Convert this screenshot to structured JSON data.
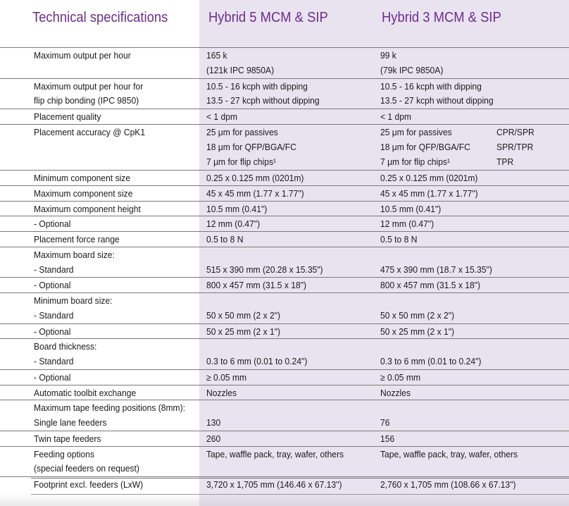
{
  "header": {
    "title": "Technical specifications",
    "col1": "Hybrid 5 MCM & SIP",
    "col2": "Hybrid 3 MCM & SIP"
  },
  "rows": [
    {
      "sep": true,
      "label": "Maximum output per hour",
      "v1": "165 k",
      "v2": "99 k",
      "extra": ""
    },
    {
      "sep": false,
      "label": "",
      "v1": "(121k IPC 9850A)",
      "v2": "(79k IPC 9850A)",
      "extra": ""
    },
    {
      "sep": true,
      "label": "Maximum output per hour for",
      "v1": "10.5 - 16 kcph with dipping",
      "v2": "10.5 - 16 kcph with dipping",
      "extra": ""
    },
    {
      "sep": false,
      "label": "flip chip bonding (IPC 9850)",
      "v1": "13.5 - 27 kcph without dipping",
      "v2": "13.5 - 27 kcph without dipping",
      "extra": ""
    },
    {
      "sep": true,
      "label": "Placement quality",
      "v1": "< 1 dpm",
      "v2": "< 1 dpm",
      "extra": ""
    },
    {
      "sep": true,
      "label": "Placement accuracy @ CpK1",
      "v1": "25 μm for passives",
      "v2": "25 μm for passives",
      "extra": "CPR/SPR"
    },
    {
      "sep": false,
      "label": "",
      "v1": "18 μm for QFP/BGA/FC",
      "v2": "18 μm for QFP/BGA/FC",
      "extra": "SPR/TPR"
    },
    {
      "sep": false,
      "label": "",
      "v1": "7 μm for flip chips¹",
      "v2": "7 μm for flip chips¹",
      "extra": "TPR"
    },
    {
      "sep": true,
      "label": "Minimum component size",
      "v1": "0.25 x 0.125 mm (0201m)",
      "v2": "0.25 x 0.125 mm (0201m)",
      "extra": ""
    },
    {
      "sep": true,
      "label": "Maximum component size",
      "v1": "45 x 45 mm (1.77 x 1.77\")",
      "v2": "45 x 45 mm (1.77 x 1.77\")",
      "extra": ""
    },
    {
      "sep": true,
      "label": "Maximum component height",
      "v1": "10.5 mm (0.41\")",
      "v2": "10.5 mm (0.41\")",
      "extra": ""
    },
    {
      "sep": true,
      "label": "- Optional",
      "v1": "12 mm (0.47\")",
      "v2": "12 mm (0.47\")",
      "extra": ""
    },
    {
      "sep": true,
      "label": "Placement force range",
      "v1": "0.5 to 8 N",
      "v2": "0.5 to 8 N",
      "extra": ""
    },
    {
      "sep": true,
      "label": "Maximum board size:",
      "v1": "",
      "v2": "",
      "extra": ""
    },
    {
      "sep": false,
      "label": "- Standard",
      "v1": "515 x 390 mm (20.28 x 15.35\")",
      "v2": "475 x 390 mm (18.7 x 15.35\")",
      "extra": ""
    },
    {
      "sep": true,
      "label": "- Optional",
      "v1": "800 x 457 mm (31.5 x 18\")",
      "v2": "800 x 457 mm (31.5 x 18\")",
      "extra": ""
    },
    {
      "sep": true,
      "label": "Minimum board size:",
      "v1": "",
      "v2": "",
      "extra": ""
    },
    {
      "sep": false,
      "label": "- Standard",
      "v1": "50 x 50 mm (2 x 2\")",
      "v2": "50 x 50 mm (2 x 2\")",
      "extra": ""
    },
    {
      "sep": true,
      "label": "- Optional",
      "v1": "50 x 25 mm (2 x 1\")",
      "v2": "50 x 25 mm (2 x 1\")",
      "extra": ""
    },
    {
      "sep": true,
      "label": "Board thickness:",
      "v1": "",
      "v2": "",
      "extra": ""
    },
    {
      "sep": false,
      "label": "- Standard",
      "v1": "0.3 to 6 mm (0.01 to 0.24\")",
      "v2": "0.3 to 6 mm (0.01 to 0.24\")",
      "extra": ""
    },
    {
      "sep": true,
      "label": "- Optional",
      "v1": "≥ 0.05 mm",
      "v2": "≥ 0.05 mm",
      "extra": ""
    },
    {
      "sep": true,
      "label": "Automatic toolbit exchange",
      "v1": "Nozzles",
      "v2": "Nozzles",
      "extra": ""
    },
    {
      "sep": true,
      "label": "Maximum tape feeding positions (8mm):",
      "v1": "",
      "v2": "",
      "extra": ""
    },
    {
      "sep": false,
      "label": "Single lane feeders",
      "v1": "130",
      "v2": "76",
      "extra": ""
    },
    {
      "sep": true,
      "label": "Twin tape feeders",
      "v1": "260",
      "v2": "156",
      "extra": ""
    },
    {
      "sep": true,
      "label": "Feeding options",
      "v1": "Tape, waffle pack, tray, wafer, others",
      "v2": "Tape, waffle pack, tray, wafer, others",
      "extra": ""
    },
    {
      "sep": false,
      "label": "(special feeders on request)",
      "v1": "",
      "v2": "",
      "extra": ""
    },
    {
      "sep": true,
      "label": "Footprint excl. feeders (LxW)",
      "v1": "3,720 x 1,705 mm (146.46 x 67.13\")",
      "v2": "2,760 x 1,705 mm (108.66 x 67.13\")",
      "extra": ""
    }
  ],
  "colors": {
    "header": "#6b2d8b",
    "shade": "#e9e3f0"
  }
}
